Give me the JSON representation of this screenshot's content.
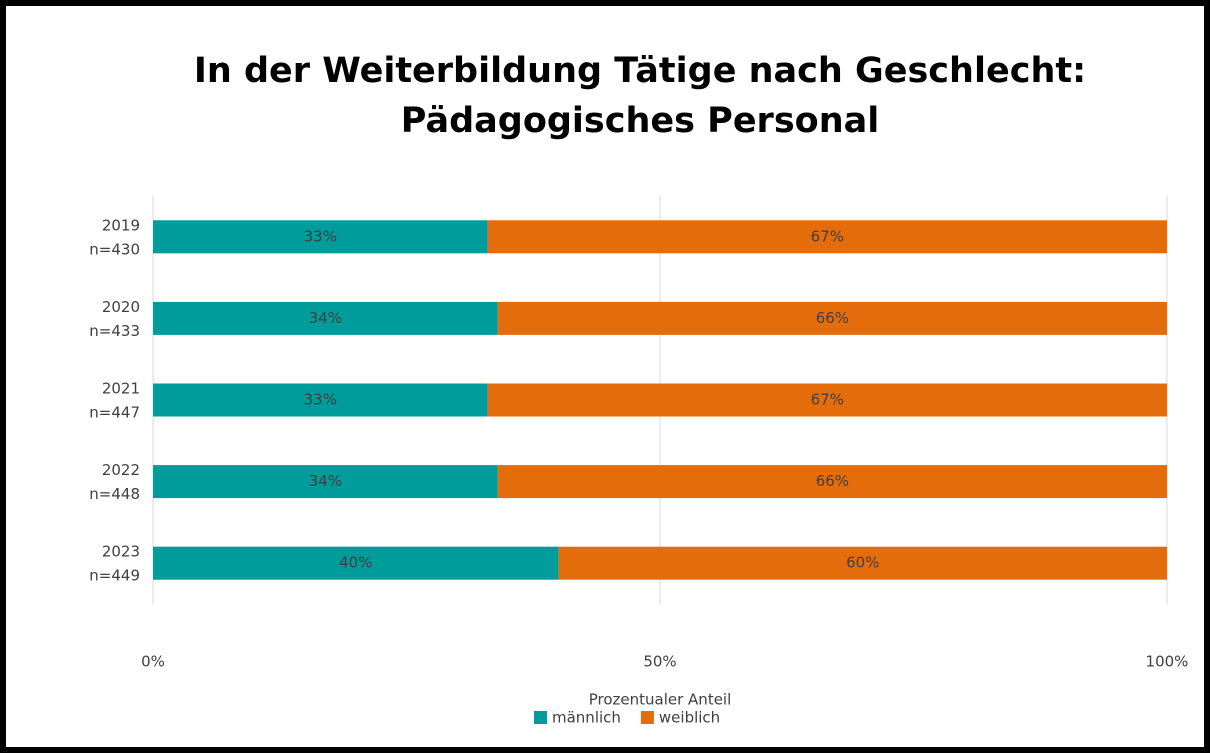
{
  "chart_data": {
    "type": "stacked_barh",
    "title": [
      "In der Weiterbildung Tätige nach Geschlecht:",
      "Pädagogisches Personal"
    ],
    "x_label": "Prozentualer Anteil",
    "categories": [
      [
        "2019",
        "n=430"
      ],
      [
        "2020",
        "n=433"
      ],
      [
        "2021",
        "n=447"
      ],
      [
        "2022",
        "n=448"
      ],
      [
        "2023",
        "n=449"
      ]
    ],
    "series": [
      {
        "name": "männlich",
        "color": "#009b9b",
        "values": [
          33,
          34,
          33,
          34,
          40
        ],
        "value_labels": [
          "33%",
          "34%",
          "33%",
          "34%",
          "40%"
        ]
      },
      {
        "name": "weiblich",
        "color": "#e46c0a",
        "values": [
          67,
          66,
          67,
          66,
          60
        ],
        "value_labels": [
          "67%",
          "66%",
          "67%",
          "66%",
          "60%"
        ]
      }
    ],
    "xlim": [
      0,
      100
    ],
    "xticks": [
      {
        "value": 0,
        "label": "0%"
      },
      {
        "value": 50,
        "label": "50%"
      },
      {
        "value": 100,
        "label": "100%"
      }
    ],
    "grid": true,
    "legend": "bottom"
  }
}
